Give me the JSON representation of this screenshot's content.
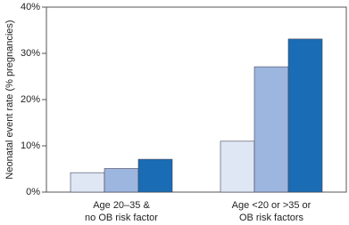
{
  "chart_data": {
    "type": "bar",
    "y_label": "Neonatal event rate (% pregnancies)",
    "categories": [
      "Age 20–35 &\nno OB risk factor",
      "Age <20 or >35 or\nOB risk factors"
    ],
    "series": [
      {
        "color": "#dfe7f5",
        "values": [
          4.2,
          11
        ]
      },
      {
        "color": "#9db6df",
        "values": [
          5.1,
          27.1
        ]
      },
      {
        "color": "#1a6cb4",
        "values": [
          7.1,
          33.1
        ]
      }
    ],
    "ylim": [
      0,
      40
    ],
    "yticks": [
      {
        "value": 0,
        "label": "0%"
      },
      {
        "value": 10,
        "label": "10%"
      },
      {
        "value": 20,
        "label": "20%"
      },
      {
        "value": 30,
        "label": "30%"
      },
      {
        "value": 40,
        "label": "40%"
      }
    ],
    "grid": false
  }
}
